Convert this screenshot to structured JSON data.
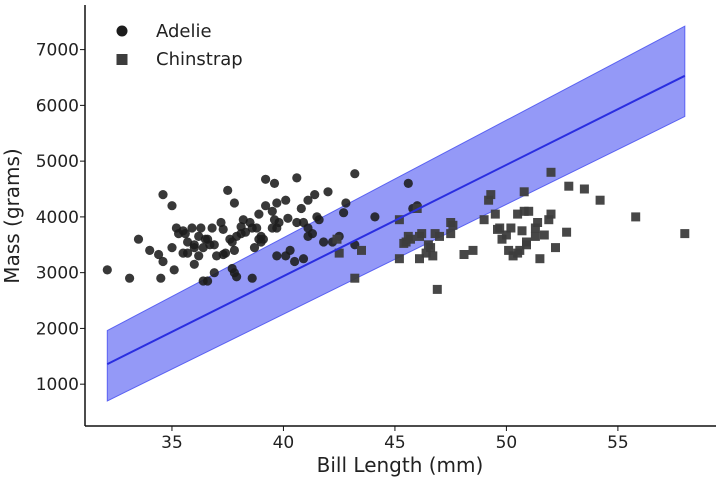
{
  "chart_data": {
    "type": "scatter",
    "xlabel": "Bill Length (mm)",
    "ylabel": "Mass (grams)",
    "xlim": [
      31.1,
      59.4
    ],
    "ylim": [
      250,
      7800
    ],
    "xticks": [
      35,
      40,
      45,
      50,
      55
    ],
    "yticks": [
      1000,
      2000,
      3000,
      4000,
      5000,
      6000,
      7000
    ],
    "grid": false,
    "legend_position": "top-left",
    "series": [
      {
        "name": "Adelie",
        "marker": "circle",
        "color": "#1c1c1c",
        "points": [
          [
            32.1,
            3050
          ],
          [
            33.1,
            2900
          ],
          [
            33.5,
            3600
          ],
          [
            34.0,
            3400
          ],
          [
            34.4,
            3325
          ],
          [
            34.5,
            2900
          ],
          [
            34.6,
            3200
          ],
          [
            34.6,
            4400
          ],
          [
            35.0,
            4200
          ],
          [
            35.0,
            3450
          ],
          [
            35.1,
            3050
          ],
          [
            35.2,
            3800
          ],
          [
            35.3,
            3700
          ],
          [
            35.5,
            3350
          ],
          [
            35.6,
            3700
          ],
          [
            35.7,
            3550
          ],
          [
            35.7,
            3350
          ],
          [
            35.9,
            3800
          ],
          [
            36.0,
            3150
          ],
          [
            36.0,
            3500
          ],
          [
            36.0,
            3450
          ],
          [
            36.2,
            3300
          ],
          [
            36.2,
            3650
          ],
          [
            36.3,
            3800
          ],
          [
            36.4,
            3450
          ],
          [
            36.4,
            2850
          ],
          [
            36.5,
            3600
          ],
          [
            36.6,
            2850
          ],
          [
            36.7,
            3500
          ],
          [
            36.8,
            3800
          ],
          [
            36.9,
            3500
          ],
          [
            37.0,
            3300
          ],
          [
            37.2,
            3900
          ],
          [
            37.3,
            3775
          ],
          [
            37.5,
            4475
          ],
          [
            37.6,
            3600
          ],
          [
            37.7,
            3550
          ],
          [
            37.8,
            4250
          ],
          [
            37.8,
            3400
          ],
          [
            37.9,
            2925
          ],
          [
            38.1,
            3700
          ],
          [
            38.2,
            3950
          ],
          [
            38.5,
            3900
          ],
          [
            38.6,
            3800
          ],
          [
            38.6,
            2900
          ],
          [
            38.8,
            3800
          ],
          [
            38.9,
            3600
          ],
          [
            39.0,
            3550
          ],
          [
            39.1,
            3600
          ],
          [
            39.2,
            4675
          ],
          [
            39.2,
            4200
          ],
          [
            39.5,
            3800
          ],
          [
            39.6,
            4600
          ],
          [
            39.7,
            3800
          ],
          [
            39.7,
            3300
          ],
          [
            39.8,
            3900
          ],
          [
            40.1,
            4300
          ],
          [
            40.2,
            3975
          ],
          [
            40.3,
            3400
          ],
          [
            40.5,
            3200
          ],
          [
            40.6,
            3900
          ],
          [
            40.8,
            4150
          ],
          [
            40.9,
            3900
          ],
          [
            41.1,
            4300
          ],
          [
            41.1,
            3800
          ],
          [
            41.3,
            3700
          ],
          [
            41.4,
            4400
          ],
          [
            41.5,
            4000
          ],
          [
            41.6,
            3950
          ],
          [
            41.8,
            3550
          ],
          [
            42.0,
            4450
          ],
          [
            42.2,
            3550
          ],
          [
            42.5,
            3650
          ],
          [
            42.7,
            4075
          ],
          [
            42.8,
            4250
          ],
          [
            43.2,
            4775
          ],
          [
            43.2,
            3500
          ],
          [
            44.1,
            4000
          ],
          [
            45.6,
            4600
          ],
          [
            45.8,
            4150
          ],
          [
            46.0,
            4200
          ],
          [
            39.0,
            3650
          ],
          [
            37.8,
            3000
          ],
          [
            38.7,
            3450
          ],
          [
            40.9,
            3250
          ],
          [
            36.6,
            3600
          ],
          [
            39.5,
            4100
          ],
          [
            40.1,
            3300
          ],
          [
            41.1,
            3650
          ],
          [
            38.1,
            3825
          ],
          [
            37.4,
            3350
          ],
          [
            36.9,
            3000
          ],
          [
            38.3,
            3725
          ],
          [
            37.7,
            3075
          ],
          [
            35.5,
            3750
          ],
          [
            38.9,
            4050
          ],
          [
            39.6,
            3950
          ],
          [
            37.3,
            3325
          ],
          [
            37.9,
            3650
          ],
          [
            39.7,
            4250
          ],
          [
            40.6,
            4700
          ]
        ]
      },
      {
        "name": "Chinstrap",
        "marker": "square",
        "color": "#3d3d3d",
        "points": [
          [
            42.4,
            3600
          ],
          [
            42.5,
            3350
          ],
          [
            43.2,
            2900
          ],
          [
            43.5,
            3400
          ],
          [
            45.2,
            3250
          ],
          [
            45.2,
            3950
          ],
          [
            45.4,
            3525
          ],
          [
            45.5,
            3550
          ],
          [
            45.6,
            3650
          ],
          [
            45.7,
            3600
          ],
          [
            46.0,
            4150
          ],
          [
            46.1,
            3250
          ],
          [
            46.2,
            3700
          ],
          [
            46.4,
            3350
          ],
          [
            46.5,
            3500
          ],
          [
            46.6,
            3450
          ],
          [
            46.7,
            3300
          ],
          [
            46.8,
            3700
          ],
          [
            46.9,
            2700
          ],
          [
            47.0,
            3650
          ],
          [
            47.5,
            3900
          ],
          [
            47.6,
            3850
          ],
          [
            48.1,
            3325
          ],
          [
            48.5,
            3400
          ],
          [
            49.0,
            3950
          ],
          [
            49.2,
            4300
          ],
          [
            49.3,
            4400
          ],
          [
            49.5,
            4050
          ],
          [
            49.7,
            3800
          ],
          [
            49.8,
            3600
          ],
          [
            50.0,
            3675
          ],
          [
            50.1,
            3400
          ],
          [
            50.2,
            3800
          ],
          [
            50.3,
            3300
          ],
          [
            50.5,
            4050
          ],
          [
            50.6,
            3400
          ],
          [
            50.7,
            3750
          ],
          [
            50.8,
            4100
          ],
          [
            50.9,
            3550
          ],
          [
            51.0,
            4100
          ],
          [
            51.3,
            3650
          ],
          [
            51.4,
            3900
          ],
          [
            51.5,
            3250
          ],
          [
            51.7,
            3675
          ],
          [
            51.9,
            3950
          ],
          [
            52.0,
            4800
          ],
          [
            52.2,
            3450
          ],
          [
            52.7,
            3725
          ],
          [
            52.8,
            4550
          ],
          [
            53.5,
            4500
          ],
          [
            54.2,
            4300
          ],
          [
            55.8,
            4000
          ],
          [
            58.0,
            3700
          ],
          [
            50.8,
            4450
          ],
          [
            49.6,
            3775
          ],
          [
            52.0,
            4050
          ],
          [
            50.5,
            3350
          ],
          [
            51.3,
            3800
          ],
          [
            46.1,
            3650
          ],
          [
            47.5,
            3700
          ],
          [
            50.9,
            3500
          ]
        ]
      }
    ],
    "regression": {
      "name": "fit",
      "color": "#2a2ee0",
      "band_color": "#5a62f2",
      "x": [
        32.1,
        58.0
      ],
      "y": [
        1360,
        6530
      ],
      "ci_lower": [
        700,
        5800
      ],
      "ci_upper": [
        1960,
        7420
      ]
    }
  }
}
